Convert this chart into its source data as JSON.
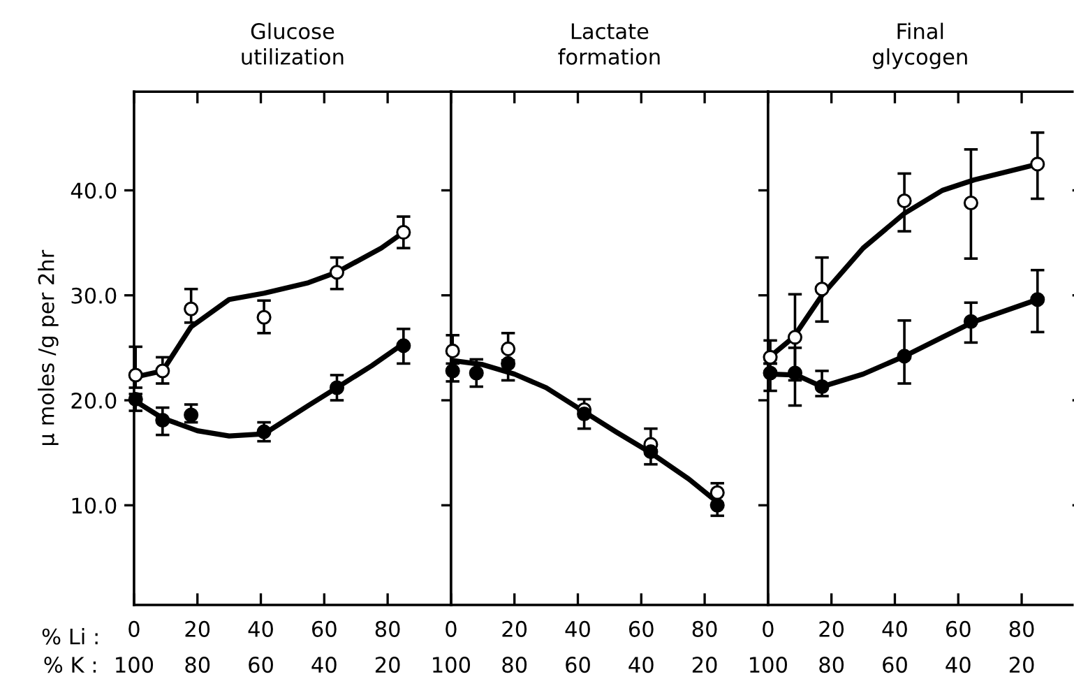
{
  "chart_data": [
    {
      "type": "line",
      "title": "Glucose\nutilization",
      "ylabel": "μ moles /g per 2hr",
      "xlabel": "% Li :",
      "x2label": "% K :",
      "xlim": [
        0,
        100
      ],
      "xticks": [
        0,
        20,
        40,
        60,
        80
      ],
      "x2lim": [
        100,
        0
      ],
      "x2ticks": [
        100,
        80,
        60,
        40,
        20
      ],
      "ylim": [
        0.5,
        49.4
      ],
      "yticks": [
        {
          "value": 10,
          "label": "10.0"
        },
        {
          "value": 20,
          "label": "20.0"
        },
        {
          "value": 30,
          "label": "30.0"
        },
        {
          "value": 40,
          "label": "40.0"
        }
      ],
      "series": [
        {
          "type": "scatter",
          "marker": "circle",
          "color": "#ffffff",
          "x": [
            0.5,
            9,
            18,
            41,
            64,
            85
          ],
          "values": [
            22.4,
            22.8,
            28.7,
            27.9,
            32.2,
            36.0
          ],
          "errors": [
            [
              21.2,
              25.1
            ],
            [
              21.6,
              24.1
            ],
            [
              27.4,
              30.6
            ],
            [
              26.4,
              29.5
            ],
            [
              30.6,
              33.6
            ],
            [
              34.5,
              37.5
            ]
          ]
        },
        {
          "type": "scatter",
          "marker": "circle",
          "color": "#000000",
          "x": [
            0.5,
            9,
            18,
            41,
            64,
            85
          ],
          "values": [
            20.1,
            18.1,
            18.6,
            17.0,
            21.2,
            25.2
          ],
          "errors": [
            [
              19.0,
              20.6
            ],
            [
              16.7,
              19.3
            ],
            [
              17.9,
              19.6
            ],
            [
              16.1,
              17.9
            ],
            [
              20.0,
              22.4
            ],
            [
              23.5,
              26.8
            ]
          ]
        },
        {
          "type": "line",
          "marker": "none",
          "color": "#000000",
          "x": [
            0,
            9,
            18,
            30,
            41,
            55,
            64,
            78,
            85
          ],
          "values": [
            22.2,
            22.8,
            27.0,
            29.6,
            30.2,
            31.2,
            32.2,
            34.5,
            36.0
          ]
        },
        {
          "type": "line",
          "marker": "none",
          "color": "#000000",
          "x": [
            0,
            9,
            20,
            30,
            41,
            55,
            64,
            75,
            85
          ],
          "values": [
            20.0,
            18.3,
            17.1,
            16.6,
            16.8,
            19.5,
            21.2,
            23.3,
            25.4
          ]
        }
      ]
    },
    {
      "type": "line",
      "title": "Lactate\nformation",
      "tick_labels": "x",
      "xlim": [
        0,
        100
      ],
      "xticks": [
        0,
        20,
        40,
        60,
        80
      ],
      "x2lim": [
        100,
        0
      ],
      "x2ticks": [
        100,
        80,
        60,
        40,
        20
      ],
      "ylim": [
        0.5,
        49.4
      ],
      "yticks": [
        {
          "value": 10,
          "label": null
        },
        {
          "value": 20,
          "label": null
        },
        {
          "value": 30,
          "label": null
        },
        {
          "value": 40,
          "label": null
        }
      ],
      "series": [
        {
          "type": "scatter",
          "marker": "circle",
          "color": "#ffffff",
          "x": [
            0.5,
            18,
            42,
            63,
            84
          ],
          "values": [
            24.7,
            24.9,
            19.1,
            15.8,
            11.2
          ],
          "errors": [
            [
              24.7,
              26.2
            ],
            [
              24.9,
              26.4
            ],
            [
              19.1,
              20.1
            ],
            [
              15.8,
              17.3
            ],
            [
              11.2,
              12.1
            ]
          ]
        },
        {
          "type": "scatter",
          "marker": "circle",
          "color": "#000000",
          "x": [
            0.5,
            8,
            18,
            42,
            63,
            84
          ],
          "values": [
            22.8,
            22.6,
            23.5,
            18.7,
            15.1,
            10.0
          ],
          "errors": [
            [
              21.8,
              23.5
            ],
            [
              21.3,
              23.9
            ],
            [
              21.9,
              23.8
            ],
            [
              17.3,
              19.1
            ],
            [
              13.9,
              15.8
            ],
            [
              9.0,
              11.2
            ]
          ]
        },
        {
          "type": "line",
          "marker": "none",
          "color": "#000000",
          "x": [
            0,
            10,
            20,
            30,
            42,
            52,
            63,
            75,
            84
          ],
          "values": [
            23.8,
            23.4,
            22.5,
            21.2,
            18.9,
            17.0,
            15.0,
            12.5,
            10.3
          ]
        }
      ]
    },
    {
      "type": "line",
      "title": "Final\nglycogen",
      "tick_labels": "x",
      "xlim": [
        0,
        96
      ],
      "xticks": [
        0,
        20,
        40,
        60,
        80
      ],
      "x2lim": [
        100,
        4
      ],
      "x2ticks": [
        100,
        80,
        60,
        40,
        20
      ],
      "ylim": [
        0.5,
        49.4
      ],
      "yticks": [
        {
          "value": 10,
          "label": null
        },
        {
          "value": 20,
          "label": null
        },
        {
          "value": 30,
          "label": null
        },
        {
          "value": 40,
          "label": null
        }
      ],
      "series": [
        {
          "type": "scatter",
          "marker": "circle",
          "color": "#ffffff",
          "x": [
            0.7,
            8.5,
            17,
            43,
            64,
            85
          ],
          "values": [
            24.1,
            26.0,
            30.6,
            39.0,
            38.8,
            42.5
          ],
          "errors": [
            [
              23.5,
              25.7
            ],
            [
              21.9,
              30.1
            ],
            [
              27.5,
              33.6
            ],
            [
              36.1,
              41.6
            ],
            [
              33.5,
              43.9
            ],
            [
              39.2,
              45.5
            ]
          ]
        },
        {
          "type": "scatter",
          "marker": "circle",
          "color": "#000000",
          "x": [
            0.7,
            8.5,
            17,
            43,
            64,
            85
          ],
          "values": [
            22.6,
            22.6,
            21.3,
            24.2,
            27.5,
            29.6
          ],
          "errors": [
            [
              20.9,
              23.5
            ],
            [
              19.5,
              25.0
            ],
            [
              20.4,
              22.8
            ],
            [
              21.6,
              27.6
            ],
            [
              25.5,
              29.3
            ],
            [
              26.5,
              32.4
            ]
          ]
        },
        {
          "type": "line",
          "marker": "none",
          "color": "#000000",
          "x": [
            0,
            8,
            17,
            30,
            43,
            55,
            65,
            85
          ],
          "values": [
            24.0,
            26.0,
            30.0,
            34.5,
            37.8,
            40.0,
            41.0,
            42.5
          ]
        },
        {
          "type": "line",
          "marker": "none",
          "color": "#000000",
          "x": [
            0,
            9,
            17,
            30,
            43,
            55,
            65,
            85
          ],
          "values": [
            22.5,
            22.4,
            21.3,
            22.5,
            24.2,
            26.0,
            27.5,
            29.6
          ]
        }
      ]
    }
  ]
}
